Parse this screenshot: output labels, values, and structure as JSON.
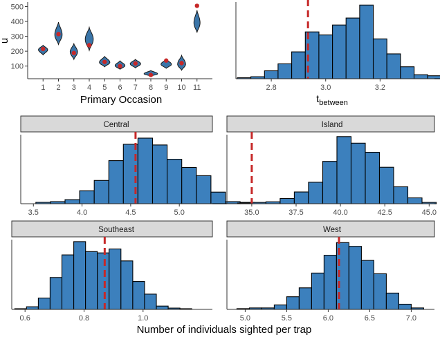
{
  "colors": {
    "fill": "#3C80BD",
    "stroke": "#000000",
    "marker": "#C62828",
    "strip": "#D9D9D9",
    "axis": "#333333",
    "violin": "#3A75A8"
  },
  "chart_data": [
    {
      "id": "violin",
      "type": "violin",
      "title": "",
      "xlabel": "Primary Occasion",
      "ylabel": "u",
      "ylim": [
        15,
        530
      ],
      "yticks": [
        100,
        200,
        300,
        400,
        500
      ],
      "categories": [
        "1",
        "2",
        "3",
        "4",
        "5",
        "6",
        "7",
        "8",
        "9",
        "10",
        "11"
      ],
      "violins": [
        {
          "lo": 175,
          "hi": 240,
          "mid": 210,
          "w": 0.3
        },
        {
          "lo": 245,
          "hi": 395,
          "mid": 310,
          "w": 0.24
        },
        {
          "lo": 145,
          "hi": 250,
          "mid": 195,
          "w": 0.24
        },
        {
          "lo": 205,
          "hi": 360,
          "mid": 280,
          "w": 0.26
        },
        {
          "lo": 95,
          "hi": 165,
          "mid": 125,
          "w": 0.34
        },
        {
          "lo": 78,
          "hi": 135,
          "mid": 103,
          "w": 0.32
        },
        {
          "lo": 88,
          "hi": 145,
          "mid": 115,
          "w": 0.34
        },
        {
          "lo": 33,
          "hi": 70,
          "mid": 48,
          "w": 0.44
        },
        {
          "lo": 85,
          "hi": 145,
          "mid": 112,
          "w": 0.34
        },
        {
          "lo": 72,
          "hi": 172,
          "mid": 112,
          "w": 0.26
        },
        {
          "lo": 325,
          "hi": 475,
          "mid": 390,
          "w": 0.2
        }
      ],
      "points": [
        215,
        315,
        188,
        240,
        128,
        100,
        118,
        40,
        137,
        120,
        505
      ]
    },
    {
      "id": "tbetween",
      "type": "histogram",
      "xlabel": "t",
      "xlabel_sub": "between",
      "xlim": [
        2.67,
        3.4
      ],
      "xticks": [
        2.8,
        3.0,
        3.2
      ],
      "xtick_labels": [
        "2.8",
        "3.0",
        "3.2"
      ],
      "bin_start": 2.675,
      "bin_width": 0.05,
      "counts": [
        1,
        2,
        8,
        15,
        27,
        47,
        44,
        54,
        61,
        74,
        40,
        25,
        12,
        4,
        3
      ],
      "ymax": 77,
      "vline": 2.935
    },
    {
      "id": "central",
      "type": "histogram",
      "strip": "Central",
      "xlim": [
        3.37,
        5.34
      ],
      "xticks": [
        3.5,
        4.0,
        4.5,
        5.0
      ],
      "xtick_labels": [
        "3.5",
        "4.0",
        "4.5",
        "5.0"
      ],
      "bin_start": 3.525,
      "bin_width": 0.15,
      "counts": [
        2,
        3,
        6,
        19,
        34,
        63,
        87,
        96,
        86,
        65,
        53,
        41,
        17,
        3,
        2
      ],
      "ymax": 101,
      "vline": 4.55
    },
    {
      "id": "island",
      "type": "histogram",
      "strip": "Island",
      "xlim": [
        33.6,
        45.3
      ],
      "xticks": [
        35.0,
        37.5,
        40.0,
        42.5,
        45.0
      ],
      "xtick_labels": [
        "35.0",
        "37.5",
        "40.0",
        "42.5",
        "45.0"
      ],
      "bin_start": 34.2,
      "bin_width": 0.8,
      "counts": [
        1,
        2,
        3,
        8,
        18,
        33,
        65,
        103,
        93,
        79,
        56,
        26,
        9,
        2
      ],
      "ymax": 106,
      "vline": 35.0
    },
    {
      "id": "southeast",
      "type": "histogram",
      "strip": "Southeast",
      "xlim": [
        0.555,
        1.235
      ],
      "xticks": [
        0.6,
        0.8,
        1.0
      ],
      "xtick_labels": [
        "0.6",
        "0.8",
        "1.0"
      ],
      "bin_start": 0.565,
      "bin_width": 0.04,
      "counts": [
        1,
        4,
        17,
        48,
        82,
        102,
        87,
        85,
        91,
        73,
        42,
        23,
        5,
        2,
        1
      ],
      "ymax": 105,
      "vline": 0.87
    },
    {
      "id": "west",
      "type": "histogram",
      "strip": "West",
      "xlabel": "Number of individuals sighted per trap",
      "xlim": [
        4.78,
        7.28
      ],
      "xticks": [
        5.0,
        5.5,
        6.0,
        6.5,
        7.0
      ],
      "xtick_labels": [
        "5.0",
        "5.5",
        "6.0",
        "6.5",
        "7.0"
      ],
      "bin_start": 4.9,
      "bin_width": 0.15,
      "counts": [
        1,
        2,
        2,
        6,
        17,
        29,
        49,
        73,
        90,
        85,
        66,
        48,
        22,
        7,
        2
      ],
      "ymax": 94,
      "vline": 6.13
    }
  ],
  "shared": {
    "bottom_xlabel": "Number of individuals sighted per trap"
  }
}
